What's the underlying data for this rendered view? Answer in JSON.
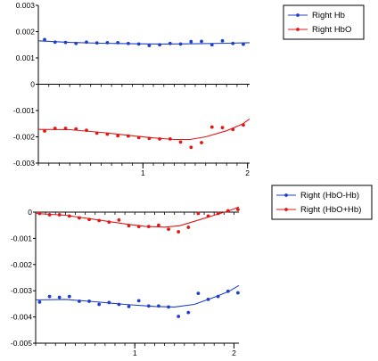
{
  "chart_data": [
    {
      "type": "scatter",
      "xlim": [
        0,
        2.02
      ],
      "ylim": [
        -0.003,
        0.003
      ],
      "yticks": [
        0.003,
        0.002,
        0.001,
        0,
        -0.001,
        -0.002,
        -0.003
      ],
      "ytick_labels": [
        "0.003",
        "0.002",
        "0.001",
        "0",
        "-0.001",
        "-0.002",
        "-0.003"
      ],
      "xticks": [
        1,
        2
      ],
      "xtick_labels": [
        "1",
        "2"
      ],
      "zero_axis": true,
      "legend_position": "top-right",
      "series": [
        {
          "name": "Right Hb",
          "color": "#1f3fc8",
          "x": [
            0.06,
            0.16,
            0.26,
            0.36,
            0.46,
            0.56,
            0.66,
            0.76,
            0.86,
            0.96,
            1.06,
            1.16,
            1.26,
            1.36,
            1.46,
            1.56,
            1.66,
            1.76,
            1.86,
            1.96,
            2.06
          ],
          "y": [
            0.0017,
            0.0016,
            0.00159,
            0.00155,
            0.0016,
            0.00157,
            0.00158,
            0.00158,
            0.00155,
            0.00153,
            0.00147,
            0.0015,
            0.00155,
            0.00153,
            0.00162,
            0.00163,
            0.0015,
            0.00165,
            0.00155,
            0.00152,
            0.00158
          ],
          "fit": [
            [
              0.0,
              0.00165
            ],
            [
              0.3,
              0.00159
            ],
            [
              0.6,
              0.00156
            ],
            [
              0.9,
              0.00154
            ],
            [
              1.2,
              0.00153
            ],
            [
              1.5,
              0.00154
            ],
            [
              1.8,
              0.00156
            ],
            [
              2.02,
              0.00158
            ]
          ]
        },
        {
          "name": "Right HbO",
          "color": "#e01818",
          "x": [
            0.06,
            0.16,
            0.26,
            0.36,
            0.46,
            0.56,
            0.66,
            0.76,
            0.86,
            0.96,
            1.06,
            1.16,
            1.26,
            1.36,
            1.46,
            1.56,
            1.66,
            1.76,
            1.86,
            1.96,
            2.06
          ],
          "y": [
            -0.00178,
            -0.00168,
            -0.00168,
            -0.0017,
            -0.00175,
            -0.00186,
            -0.0019,
            -0.00196,
            -0.00197,
            -0.00203,
            -0.00206,
            -0.00208,
            -0.00208,
            -0.0022,
            -0.0024,
            -0.00222,
            -0.00163,
            -0.00165,
            -0.00172,
            -0.00155,
            -0.00155
          ],
          "fit": [
            [
              0.0,
              -0.00172
            ],
            [
              0.3,
              -0.00173
            ],
            [
              0.6,
              -0.00183
            ],
            [
              0.9,
              -0.00196
            ],
            [
              1.1,
              -0.00204
            ],
            [
              1.3,
              -0.0021
            ],
            [
              1.45,
              -0.0021
            ],
            [
              1.6,
              -0.002
            ],
            [
              1.8,
              -0.00177
            ],
            [
              1.95,
              -0.00152
            ],
            [
              2.02,
              -0.00132
            ]
          ]
        }
      ]
    },
    {
      "type": "scatter",
      "xlim": [
        0,
        2.05
      ],
      "ylim": [
        -0.005,
        0.0
      ],
      "yticks": [
        0,
        -0.001,
        -0.002,
        -0.003,
        -0.004,
        -0.005
      ],
      "ytick_labels": [
        "0",
        "-0.001",
        "-0.002",
        "-0.003",
        "-0.004",
        "-0.005"
      ],
      "xticks": [
        1,
        2
      ],
      "xtick_labels": [
        "1",
        "2"
      ],
      "zero_axis": true,
      "legend_position": "top-right",
      "series": [
        {
          "name": "Right (HbO-Hb)",
          "color": "#1f3fc8",
          "x": [
            0.04,
            0.14,
            0.24,
            0.34,
            0.44,
            0.54,
            0.64,
            0.74,
            0.84,
            0.94,
            1.04,
            1.14,
            1.24,
            1.34,
            1.44,
            1.54,
            1.64,
            1.74,
            1.84,
            1.94,
            2.04
          ],
          "y": [
            -0.00343,
            -0.00322,
            -0.00325,
            -0.00322,
            -0.0034,
            -0.0034,
            -0.00352,
            -0.00345,
            -0.00352,
            -0.0036,
            -0.00338,
            -0.00358,
            -0.00358,
            -0.00362,
            -0.00398,
            -0.00383,
            -0.0031,
            -0.00333,
            -0.00322,
            -0.00302,
            -0.00308
          ],
          "fit": [
            [
              0.0,
              -0.00335
            ],
            [
              0.3,
              -0.00333
            ],
            [
              0.6,
              -0.00342
            ],
            [
              0.9,
              -0.00352
            ],
            [
              1.2,
              -0.0036
            ],
            [
              1.4,
              -0.00362
            ],
            [
              1.6,
              -0.00352
            ],
            [
              1.8,
              -0.00325
            ],
            [
              1.95,
              -0.00302
            ],
            [
              2.05,
              -0.0028
            ]
          ]
        },
        {
          "name": "Right (HbO+Hb)",
          "color": "#e01818",
          "x": [
            0.04,
            0.14,
            0.24,
            0.34,
            0.44,
            0.54,
            0.64,
            0.74,
            0.84,
            0.94,
            1.04,
            1.14,
            1.24,
            1.34,
            1.44,
            1.54,
            1.64,
            1.74,
            1.84,
            1.94,
            2.04
          ],
          "y": [
            -5e-05,
            -0.0001,
            -0.0001,
            -0.00015,
            -0.00022,
            -0.00028,
            -0.00032,
            -0.00038,
            -0.0003,
            -0.00052,
            -0.00055,
            -0.00055,
            -0.0005,
            -0.00065,
            -0.00075,
            -0.00058,
            -5e-05,
            -0.00015,
            -5e-05,
            5e-05,
            0.0001
          ],
          "fit": [
            [
              0.0,
              -5e-05
            ],
            [
              0.3,
              -0.00012
            ],
            [
              0.6,
              -0.00028
            ],
            [
              0.9,
              -0.00045
            ],
            [
              1.1,
              -0.00054
            ],
            [
              1.3,
              -0.00057
            ],
            [
              1.45,
              -0.00052
            ],
            [
              1.6,
              -0.00035
            ],
            [
              1.8,
              -0.00012
            ],
            [
              1.95,
              5e-05
            ],
            [
              2.05,
              0.0002
            ]
          ]
        }
      ]
    }
  ]
}
